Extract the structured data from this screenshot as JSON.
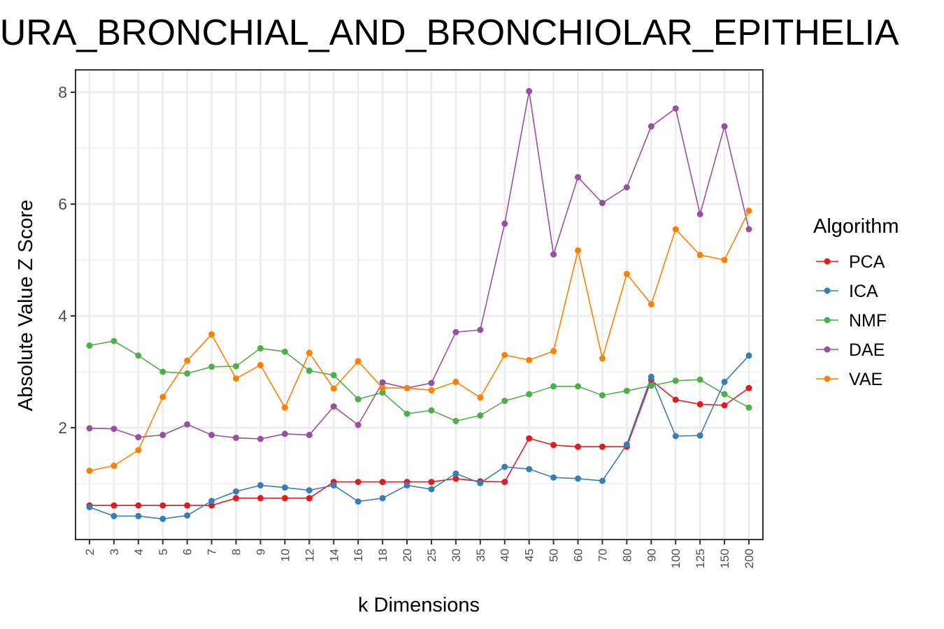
{
  "chart_data": {
    "type": "line",
    "title": "MURA_BRONCHIAL_AND_BRONCHIOLAR_EPITHELIA",
    "xlabel": "k Dimensions",
    "ylabel": "Absolute Value Z Score",
    "categories": [
      "2",
      "3",
      "4",
      "5",
      "6",
      "7",
      "8",
      "9",
      "10",
      "12",
      "14",
      "16",
      "18",
      "20",
      "25",
      "30",
      "35",
      "40",
      "45",
      "50",
      "60",
      "70",
      "80",
      "90",
      "100",
      "125",
      "150",
      "200"
    ],
    "ylim": [
      0,
      8.4
    ],
    "yticks": [
      "2",
      "4",
      "6",
      "8"
    ],
    "grid": true,
    "legend_title": "Algorithm",
    "legend_position": "right",
    "series": [
      {
        "name": "PCA",
        "color": "#E41A1C",
        "values": [
          0.61,
          0.61,
          0.61,
          0.61,
          0.61,
          0.61,
          0.74,
          0.74,
          0.74,
          0.74,
          1.03,
          1.03,
          1.03,
          1.03,
          1.03,
          1.09,
          1.04,
          1.03,
          1.81,
          1.69,
          1.66,
          1.66,
          1.66,
          2.85,
          2.5,
          2.42,
          2.4,
          2.71
        ]
      },
      {
        "name": "ICA",
        "color": "#377EB8",
        "values": [
          0.58,
          0.42,
          0.42,
          0.37,
          0.43,
          0.69,
          0.86,
          0.97,
          0.93,
          0.88,
          0.97,
          0.68,
          0.74,
          0.97,
          0.9,
          1.18,
          1.01,
          1.3,
          1.26,
          1.11,
          1.09,
          1.05,
          1.7,
          2.91,
          1.85,
          1.86,
          2.82,
          3.29
        ]
      },
      {
        "name": "NMF",
        "color": "#4DAF4A",
        "values": [
          3.47,
          3.55,
          3.29,
          3.0,
          2.97,
          3.09,
          3.1,
          3.42,
          3.36,
          3.02,
          2.94,
          2.51,
          2.63,
          2.25,
          2.31,
          2.12,
          2.22,
          2.48,
          2.6,
          2.74,
          2.74,
          2.58,
          2.66,
          2.75,
          2.84,
          2.86,
          2.6,
          2.36
        ]
      },
      {
        "name": "DAE",
        "color": "#984EA3",
        "values": [
          1.99,
          1.98,
          1.83,
          1.87,
          2.06,
          1.87,
          1.82,
          1.8,
          1.89,
          1.87,
          2.38,
          2.05,
          2.81,
          2.71,
          2.8,
          3.71,
          3.75,
          5.65,
          8.02,
          5.1,
          6.48,
          6.02,
          6.3,
          7.39,
          7.71,
          5.82,
          7.39,
          5.55
        ]
      },
      {
        "name": "VAE",
        "color": "#FF7F00",
        "values": [
          1.23,
          1.32,
          1.6,
          2.55,
          3.2,
          3.67,
          2.88,
          3.12,
          2.36,
          3.34,
          2.7,
          3.19,
          2.71,
          2.71,
          2.67,
          2.82,
          2.54,
          3.3,
          3.21,
          3.37,
          5.17,
          3.24,
          4.75,
          4.21,
          5.55,
          5.09,
          5.0,
          5.88
        ]
      }
    ]
  }
}
